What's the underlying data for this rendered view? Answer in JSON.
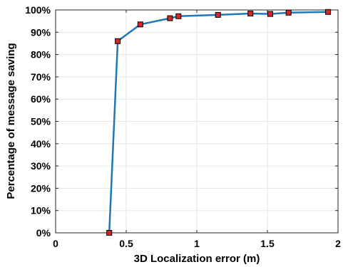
{
  "chart_data": {
    "type": "line",
    "title": "",
    "xlabel": "3D Localization error (m)",
    "ylabel": "Percentage of message saving",
    "xlim": [
      0,
      2
    ],
    "ylim": [
      0,
      100
    ],
    "x_ticks": [
      0,
      0.5,
      1,
      1.5,
      2
    ],
    "x_tick_labels": [
      "0",
      "0.5",
      "1",
      "1.5",
      "2"
    ],
    "y_ticks": [
      0,
      10,
      20,
      30,
      40,
      50,
      60,
      70,
      80,
      90,
      100
    ],
    "y_tick_labels": [
      "0%",
      "10%",
      "20%",
      "30%",
      "40%",
      "50%",
      "60%",
      "70%",
      "80%",
      "90%",
      "100%"
    ],
    "grid": true,
    "legend": "none",
    "series": [
      {
        "x": [
          0.38,
          0.44,
          0.6,
          0.81,
          0.87,
          1.15,
          1.38,
          1.52,
          1.65,
          1.93
        ],
        "y": [
          0,
          86,
          93.5,
          96.3,
          97.2,
          97.8,
          98.4,
          98.2,
          98.8,
          99.1
        ],
        "line_color": "#1f77b4",
        "marker_color": "#d62728",
        "marker": "square"
      }
    ]
  }
}
